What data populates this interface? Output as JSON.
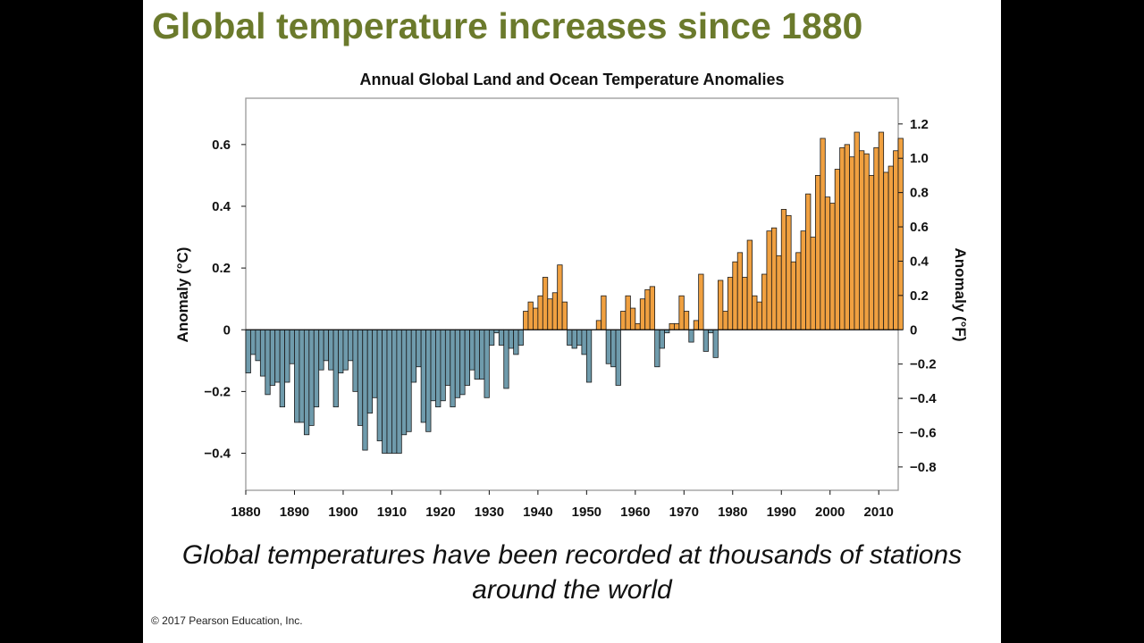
{
  "slide": {
    "title": "Global temperature increases since 1880",
    "caption_line1": "Global temperatures have been recorded at thousands of stations",
    "caption_line2": "around the world",
    "copyright": "© 2017 Pearson Education, Inc.",
    "title_color": "#6b7a2c"
  },
  "colors": {
    "positive": "#f0a040",
    "negative": "#6f9bac",
    "bar_stroke": "#1a1a1a",
    "frame": "#999999"
  },
  "chart_data": {
    "type": "bar",
    "title": "Annual Global Land and Ocean Temperature Anomalies",
    "ylabel_left": "Anomaly (°C)",
    "ylabel_right": "Anomaly (°F)",
    "xlabel": "",
    "ylim": [
      -0.52,
      0.75
    ],
    "xlim": [
      1880,
      2014
    ],
    "x_ticks": [
      1880,
      1890,
      1900,
      1910,
      1920,
      1930,
      1940,
      1950,
      1960,
      1970,
      1980,
      1990,
      2000,
      2010
    ],
    "y_ticks_left": [
      -0.4,
      -0.2,
      0,
      0.2,
      0.4,
      0.6
    ],
    "y_tick_labels_left": [
      "−0.4",
      "−0.2",
      "0",
      "0.2",
      "0.4",
      "0.6"
    ],
    "y_ticks_right_f": [
      -0.8,
      -0.6,
      -0.4,
      -0.2,
      0,
      0.2,
      0.4,
      0.6,
      0.8,
      1.0,
      1.2
    ],
    "y_tick_labels_right": [
      "−0.8",
      "−0.6",
      "−0.4",
      "−0.2",
      "0",
      "0.2",
      "0.4",
      "0.6",
      "0.8",
      "1.0",
      "1.2"
    ],
    "start_year": 1880,
    "values": [
      -0.14,
      -0.08,
      -0.1,
      -0.15,
      -0.21,
      -0.18,
      -0.17,
      -0.25,
      -0.17,
      -0.11,
      -0.3,
      -0.3,
      -0.34,
      -0.31,
      -0.25,
      -0.13,
      -0.1,
      -0.13,
      -0.25,
      -0.14,
      -0.13,
      -0.1,
      -0.2,
      -0.31,
      -0.39,
      -0.27,
      -0.22,
      -0.36,
      -0.4,
      -0.4,
      -0.4,
      -0.4,
      -0.34,
      -0.33,
      -0.17,
      -0.12,
      -0.3,
      -0.33,
      -0.23,
      -0.25,
      -0.23,
      -0.18,
      -0.25,
      -0.22,
      -0.21,
      -0.18,
      -0.13,
      -0.16,
      -0.16,
      -0.22,
      -0.05,
      -0.01,
      -0.05,
      -0.19,
      -0.06,
      -0.08,
      -0.05,
      0.06,
      0.09,
      0.07,
      0.11,
      0.17,
      0.1,
      0.12,
      0.21,
      0.09,
      -0.05,
      -0.06,
      -0.05,
      -0.08,
      -0.17,
      0.0,
      0.03,
      0.11,
      -0.11,
      -0.12,
      -0.18,
      0.06,
      0.11,
      0.07,
      0.02,
      0.1,
      0.13,
      0.14,
      -0.12,
      -0.06,
      -0.01,
      0.02,
      0.02,
      0.11,
      0.06,
      -0.04,
      0.03,
      0.18,
      -0.07,
      -0.01,
      -0.09,
      0.16,
      0.06,
      0.17,
      0.22,
      0.25,
      0.17,
      0.29,
      0.11,
      0.09,
      0.18,
      0.32,
      0.33,
      0.24,
      0.39,
      0.37,
      0.22,
      0.25,
      0.32,
      0.44,
      0.3,
      0.5,
      0.62,
      0.43,
      0.41,
      0.52,
      0.59,
      0.6,
      0.56,
      0.64,
      0.58,
      0.57,
      0.5,
      0.59,
      0.64,
      0.51,
      0.53,
      0.58,
      0.62
    ]
  }
}
